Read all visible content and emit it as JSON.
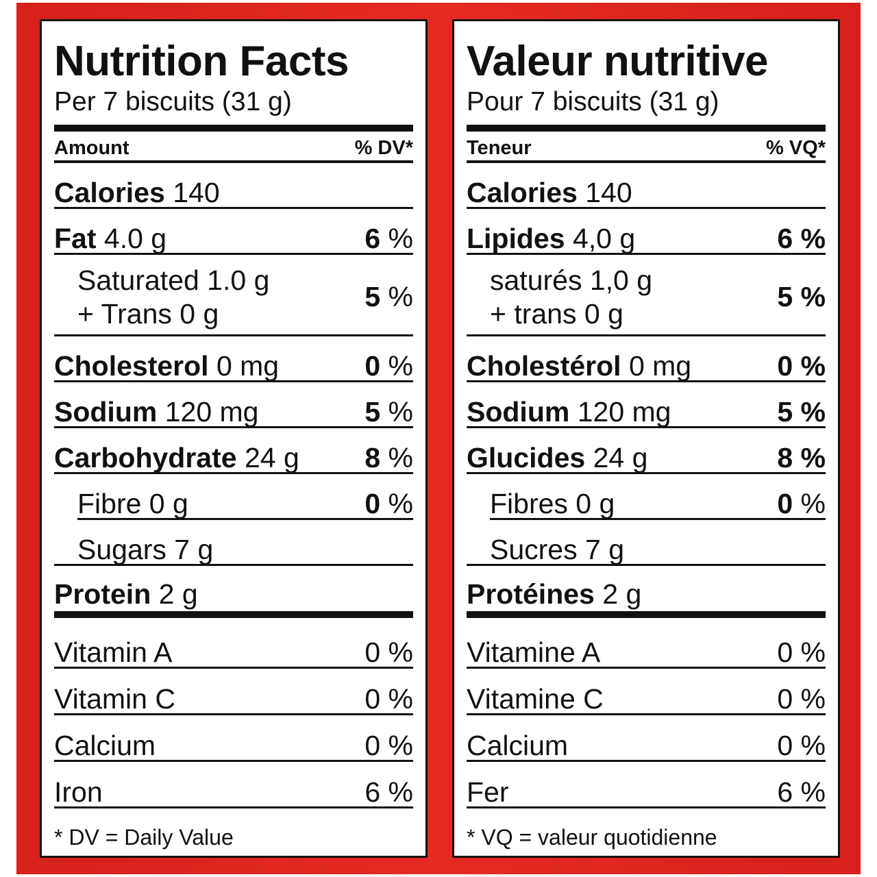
{
  "en": {
    "title": "Nutrition Facts",
    "serving": "Per 7 biscuits (31 g)",
    "amount_header": "Amount",
    "dv_header": "% DV*",
    "calories_label": "Calories",
    "calories_value": "140",
    "fat_label": "Fat",
    "fat_amount": "4.0 g",
    "fat_dv_num": "6",
    "sat_line1": "Saturated 1.0 g",
    "sat_line2": "+ Trans 0 g",
    "sat_dv_num": "5",
    "chol_label": "Cholesterol",
    "chol_amount": "0 mg",
    "chol_dv_num": "0",
    "sodium_label": "Sodium",
    "sodium_amount": "120 mg",
    "sodium_dv_num": "5",
    "carb_label": "Carbohydrate",
    "carb_amount": "24 g",
    "carb_dv_num": "8",
    "fibre_label": "Fibre 0 g",
    "fibre_dv_num": "0",
    "sugars_label": "Sugars 7 g",
    "protein_label": "Protein",
    "protein_amount": "2 g",
    "vit_a_label": "Vitamin A",
    "vit_a_dv": "0 %",
    "vit_c_label": "Vitamin C",
    "vit_c_dv": "0 %",
    "calcium_label": "Calcium",
    "calcium_dv": "0 %",
    "iron_label": "Iron",
    "iron_dv": "6 %",
    "footnote": "* DV = Daily Value"
  },
  "fr": {
    "title": "Valeur nutritive",
    "serving": "Pour 7 biscuits (31 g)",
    "amount_header": "Teneur",
    "dv_header": "% VQ*",
    "calories_label": "Calories",
    "calories_value": "140",
    "fat_label": "Lipides",
    "fat_amount": "4,0 g",
    "fat_dv": "6 %",
    "sat_line1": "saturés 1,0 g",
    "sat_line2": "+ trans 0 g",
    "sat_dv": "5 %",
    "chol_label": "Cholestérol",
    "chol_amount": "0 mg",
    "chol_dv": "0 %",
    "sodium_label": "Sodium",
    "sodium_amount": "120 mg",
    "sodium_dv": "5 %",
    "carb_label": "Glucides",
    "carb_amount": "24 g",
    "carb_dv": "8 %",
    "fibre_label": "Fibres 0 g",
    "fibre_dv_num": "0",
    "sugars_label": "Sucres 7 g",
    "protein_label": "Protéines",
    "protein_amount": "2 g",
    "vit_a_label": "Vitamine A",
    "vit_a_dv": "0 %",
    "vit_c_label": "Vitamine C",
    "vit_c_dv": "0 %",
    "calcium_label": "Calcium",
    "calcium_dv": "0 %",
    "iron_label": "Fer",
    "iron_dv": "6 %",
    "footnote": "* VQ = valeur quotidienne"
  },
  "colors": {
    "frame": "#e52a22",
    "ink": "#111111"
  }
}
